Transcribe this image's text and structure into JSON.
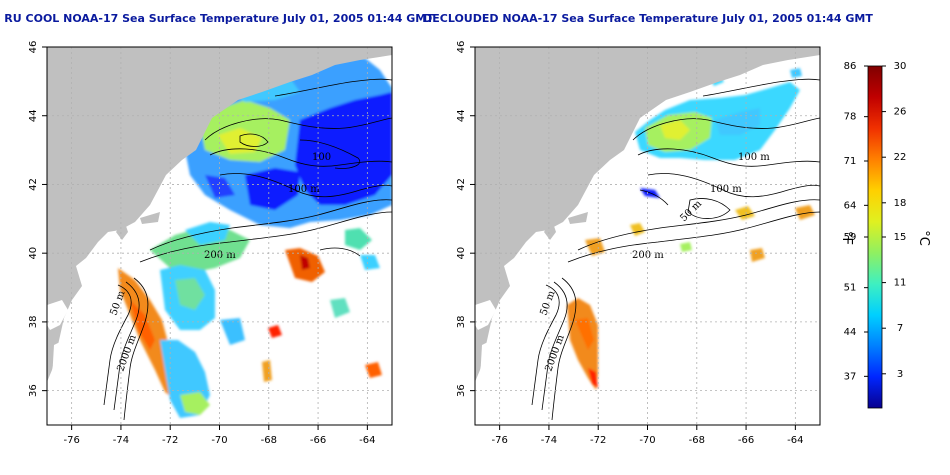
{
  "maps": [
    {
      "title": "RU COOL NOAA-17 Sea Surface Temperature July 01, 2005 01:44 GMT",
      "lon_ticks": [
        "-76",
        "-74",
        "-72",
        "-70",
        "-68",
        "-66",
        "-64"
      ],
      "lat_ticks": [
        "36",
        "38",
        "40",
        "42",
        "44",
        "46"
      ],
      "contour_labels": [
        "100",
        "100 m",
        "200 m",
        "50 m",
        "2000 m"
      ]
    },
    {
      "title": "DECLOUDED NOAA-17 Sea Surface Temperature July 01, 2005 01:44 GMT",
      "lon_ticks": [
        "-76",
        "-74",
        "-72",
        "-70",
        "-68",
        "-66",
        "-64"
      ],
      "lat_ticks": [
        "36",
        "38",
        "40",
        "42",
        "44",
        "46"
      ],
      "contour_labels": [
        "100 m",
        "100 m",
        "50 m",
        "200 m",
        "50 m",
        "2000 m"
      ]
    }
  ],
  "colorbar": {
    "fahrenheit_ticks": [
      "86",
      "78",
      "71",
      "64",
      "59",
      "51",
      "44",
      "37"
    ],
    "celsius_ticks": [
      "30",
      "26",
      "22",
      "18",
      "15",
      "11",
      "7",
      "3"
    ],
    "fahrenheit_unit": "°F",
    "celsius_unit": "°C",
    "colors": [
      "#08008f",
      "#0026ff",
      "#0080ff",
      "#00d0ff",
      "#3ff0c0",
      "#90f060",
      "#e0f020",
      "#ffd000",
      "#ff8000",
      "#f03000",
      "#c00000",
      "#800000"
    ]
  },
  "colors": {
    "land": "#c0c0c0",
    "ocean": "#ffffff",
    "title": "#0a1a9e",
    "grid": "#b0b0b0"
  }
}
